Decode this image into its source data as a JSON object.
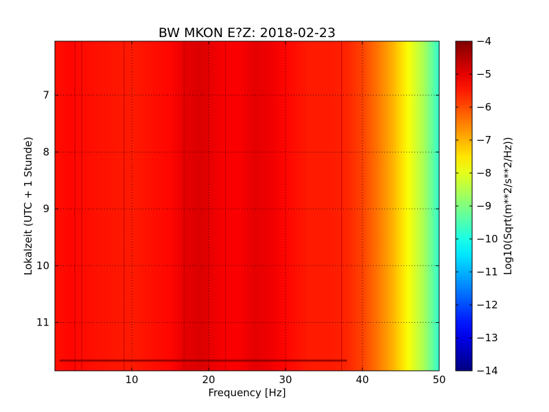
{
  "chart_data": {
    "type": "heatmap",
    "title": "BW MKON E?Z: 2018-02-23",
    "xlabel": "Frequency [Hz]",
    "ylabel": "Lokalzeit (UTC + 1 Stunde)",
    "xlim": [
      0,
      50
    ],
    "ylim": [
      11.85,
      6.05
    ],
    "x_ticks": [
      10,
      20,
      30,
      40,
      50
    ],
    "y_ticks": [
      7,
      8,
      9,
      10,
      11
    ],
    "grid": true,
    "colorbar": {
      "label": "Log10(Sqrt(m**2/s**2/Hz))",
      "range": [
        -14,
        -4
      ],
      "ticks": [
        -4,
        -5,
        -6,
        -7,
        -8,
        -9,
        -10,
        -11,
        -12,
        -13,
        -14
      ],
      "colormap": "jet"
    },
    "frequency_profile": {
      "freq_hz": [
        0,
        2,
        5,
        10,
        15,
        17,
        19,
        22,
        24,
        26,
        28,
        30,
        33,
        36,
        38,
        40,
        42,
        44,
        45,
        46,
        47,
        48,
        49,
        50
      ],
      "log10_amplitude": [
        -5.4,
        -5.3,
        -5.4,
        -5.5,
        -5.3,
        -5.0,
        -4.9,
        -5.2,
        -5.2,
        -5.0,
        -5.1,
        -5.3,
        -5.5,
        -5.5,
        -5.6,
        -5.9,
        -6.4,
        -7.0,
        -7.4,
        -7.8,
        -8.2,
        -8.6,
        -9.2,
        -9.8
      ]
    },
    "features": {
      "dark_vertical_lines_hz": [
        2.6,
        3.5,
        9.0,
        16.8,
        22.2,
        37.3
      ],
      "dark_horizontal_band_hour": 11.67
    }
  }
}
